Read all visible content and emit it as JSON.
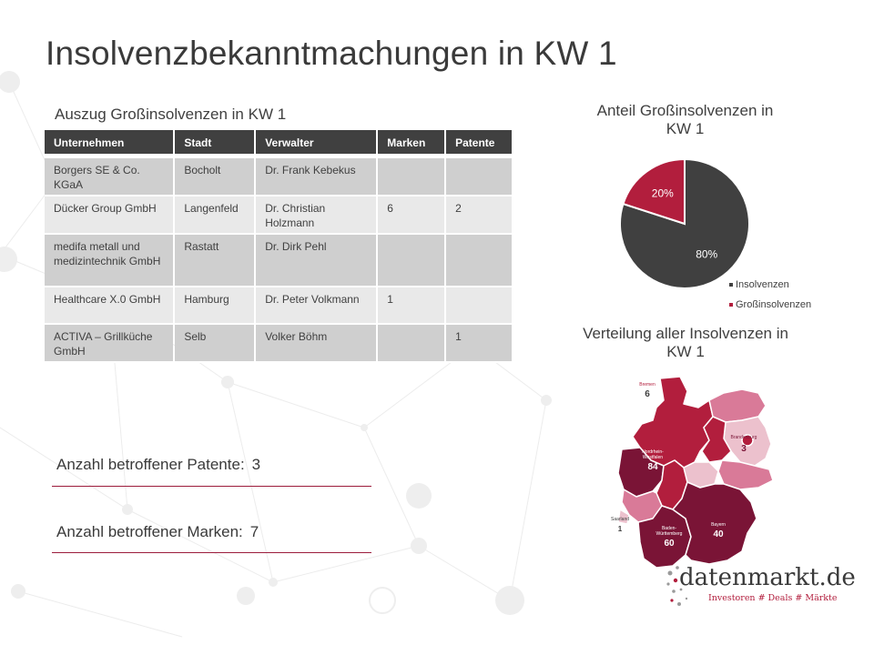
{
  "title": "Insolvenzbekanntmachungen in KW 1",
  "table": {
    "caption": "Auszug Großinsolvenzen in KW 1",
    "headers": [
      "Unternehmen",
      "Stadt",
      "Verwalter",
      "Marken",
      "Patente"
    ],
    "rows": [
      [
        "Borgers SE & Co. KGaA",
        "Bocholt",
        "Dr. Frank Kebekus",
        "",
        ""
      ],
      [
        "Dücker Group GmbH",
        "Langenfeld",
        "Dr. Christian Holzmann",
        "6",
        "2"
      ],
      [
        "medifa metall und medizintechnik GmbH",
        "Rastatt",
        "Dr. Dirk Pehl",
        "",
        ""
      ],
      [
        "Healthcare X.0 GmbH",
        "Hamburg",
        "Dr. Peter Volkmann",
        "1",
        ""
      ],
      [
        "ACTIVA – Grillküche GmbH",
        "Selb",
        "Volker Böhm",
        "",
        "1"
      ]
    ]
  },
  "kpis": {
    "patente_label": "Anzahl betroffener Patente:",
    "patente_value": "3",
    "marken_label": "Anzahl betroffener Marken:",
    "marken_value": "7"
  },
  "pie_title": "Anteil Großinsolvenzen in KW 1",
  "map_title": "Verteilung aller Insolvenzen in KW 1",
  "chart_data": [
    {
      "type": "pie",
      "title": "Anteil Großinsolvenzen in KW 1",
      "legend_position": "bottom-right",
      "slices": [
        {
          "name": "Insolvenzen",
          "value": 80,
          "label": "80%",
          "color": "#404040"
        },
        {
          "name": "Großinsolvenzen",
          "value": 20,
          "label": "20%",
          "color": "#b21e3d"
        }
      ]
    },
    {
      "type": "map",
      "title": "Verteilung aller Insolvenzen in KW 1",
      "regions": [
        {
          "name": "Bremen",
          "value": 6
        },
        {
          "name": "Nordrhein-Westfalen",
          "value": 84
        },
        {
          "name": "Brandenburg",
          "value": 3
        },
        {
          "name": "Saarland",
          "value": 1
        },
        {
          "name": "Baden-Württemberg",
          "value": 60
        },
        {
          "name": "Bayern",
          "value": 40
        }
      ]
    }
  ],
  "colors": {
    "dark_red": "#7a1436",
    "accent_red": "#b21e3d",
    "pink": "#d97a98",
    "light_pink": "#ecc1cd",
    "table_header": "#404040"
  },
  "logo": {
    "name": "datenmarkt.de",
    "tagline": "Investoren # Deals # Märkte"
  }
}
